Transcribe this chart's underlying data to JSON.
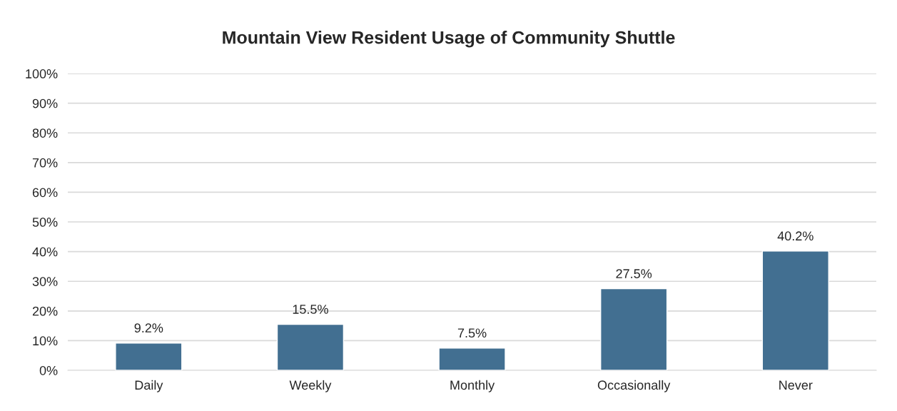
{
  "chart_data": {
    "type": "bar",
    "title": "Mountain View Resident Usage of Community Shuttle",
    "categories": [
      "Daily",
      "Weekly",
      "Monthly",
      "Occasionally",
      "Never"
    ],
    "values": [
      9.2,
      15.5,
      7.5,
      27.5,
      40.2
    ],
    "value_labels": [
      "9.2%",
      "15.5%",
      "7.5%",
      "27.5%",
      "40.2%"
    ],
    "color": "#426f91",
    "ylim": [
      0,
      100
    ],
    "yticks": [
      {
        "value": 0,
        "label": "0%"
      },
      {
        "value": 10,
        "label": "10%"
      },
      {
        "value": 20,
        "label": "20%"
      },
      {
        "value": 30,
        "label": "30%"
      },
      {
        "value": 40,
        "label": "40%"
      },
      {
        "value": 50,
        "label": "50%"
      },
      {
        "value": 60,
        "label": "60%"
      },
      {
        "value": 70,
        "label": "70%"
      },
      {
        "value": 80,
        "label": "80%"
      },
      {
        "value": 90,
        "label": "90%"
      },
      {
        "value": 100,
        "label": "100%"
      }
    ],
    "grid": "y"
  }
}
